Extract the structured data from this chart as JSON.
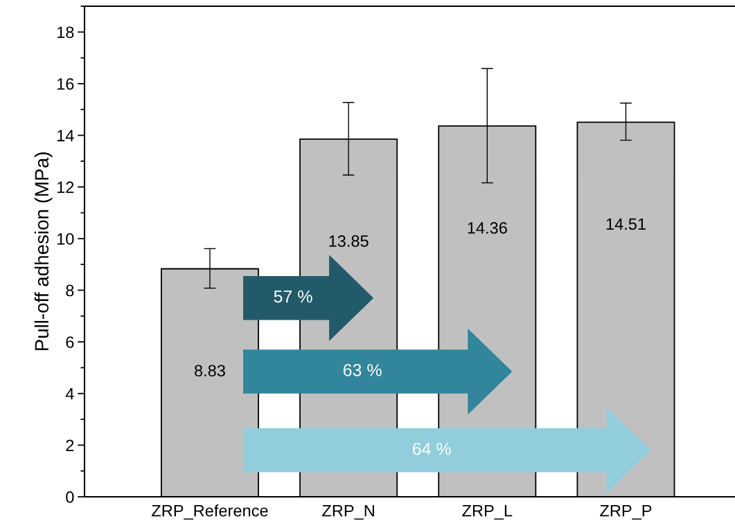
{
  "chart_data": {
    "type": "bar",
    "ylabel": "Pull-off adhesion (MPa)",
    "categories": [
      "ZRP_Reference",
      "ZRP_N",
      "ZRP_L",
      "ZRP_P"
    ],
    "values": [
      8.83,
      13.85,
      14.36,
      14.51
    ],
    "errors": [
      [
        8.08,
        9.61
      ],
      [
        12.46,
        15.27
      ],
      [
        12.16,
        16.59
      ],
      [
        13.81,
        15.25
      ]
    ],
    "color": "#c0c0c0",
    "data_labels": true,
    "ylim": [
      0,
      19
    ],
    "yticks": [
      0,
      2,
      4,
      6,
      8,
      10,
      12,
      14,
      16,
      18
    ],
    "grid": false,
    "legend": false,
    "annotations": [
      "57 %",
      "63 %",
      "64 %"
    ]
  }
}
